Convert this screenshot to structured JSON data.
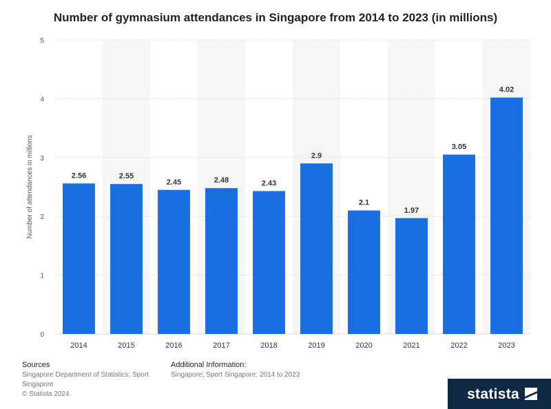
{
  "chart_data": {
    "type": "bar",
    "title": "Number of gymnasium attendances in Singapore from 2014 to 2023 (in millions)",
    "xlabel": "",
    "ylabel": "Number of attendances in millions",
    "ylim": [
      0,
      5
    ],
    "yticks": [
      0,
      1,
      2,
      3,
      4,
      5
    ],
    "categories": [
      "2014",
      "2015",
      "2016",
      "2017",
      "2018",
      "2019",
      "2020",
      "2021",
      "2022",
      "2023"
    ],
    "values": [
      2.56,
      2.55,
      2.45,
      2.48,
      2.43,
      2.9,
      2.1,
      1.97,
      3.05,
      4.02
    ],
    "data_labels": [
      "2.56",
      "2.55",
      "2.45",
      "2.48",
      "2.43",
      "2.9",
      "2.1",
      "1.97",
      "3.05",
      "4.02"
    ],
    "bar_color": "#1a6fe0",
    "grid": true
  },
  "footer": {
    "sources_heading": "Sources",
    "sources_text_line1": "Singapore Department of Statistics; Sport",
    "sources_text_line2": "Singapore",
    "copyright": "© Statista 2024",
    "additional_heading": "Additional Information:",
    "additional_text": "Singapore; Sport Singapore; 2014 to 2023"
  },
  "brand": {
    "name": "statista",
    "icon": "statista-logo-icon",
    "background": "#0f2846"
  }
}
